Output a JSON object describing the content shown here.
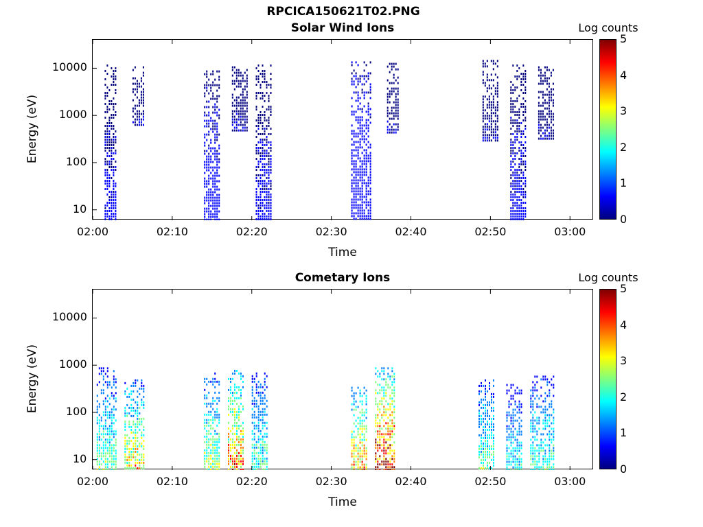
{
  "page_title": "RPCICA150621T02.PNG",
  "colormap": [
    "#00007f",
    "#0000ff",
    "#007fff",
    "#00ffff",
    "#7fff7f",
    "#ffff00",
    "#ff7f00",
    "#ff0000",
    "#7f0000"
  ],
  "chart_data": [
    {
      "type": "heatmap",
      "title": "Solar Wind Ions",
      "xlabel": "Time",
      "ylabel": "Energy (eV)",
      "x_tick_labels": [
        "02:00",
        "02:10",
        "02:20",
        "02:30",
        "02:40",
        "02:50",
        "03:00"
      ],
      "y_tick_labels": [
        "10",
        "100",
        "1000",
        "10000"
      ],
      "xlim_minutes": [
        0,
        63
      ],
      "ylim_eV": [
        6,
        40000
      ],
      "yscale": "log",
      "colorbar_label": "Log counts",
      "colorbar_ticks": [
        "0",
        "1",
        "2",
        "3",
        "4",
        "5"
      ],
      "clim": [
        0,
        5
      ],
      "bursts": [
        {
          "t_start": 1.5,
          "t_end": 3.0,
          "e_min": 6,
          "e_max": 12000,
          "level": 0.3
        },
        {
          "t_start": 5.0,
          "t_end": 6.5,
          "e_min": 600,
          "e_max": 11000,
          "level": 0.2
        },
        {
          "t_start": 14.0,
          "t_end": 16.0,
          "e_min": 6,
          "e_max": 9000,
          "level": 0.4
        },
        {
          "t_start": 17.5,
          "t_end": 19.5,
          "e_min": 500,
          "e_max": 11000,
          "level": 0.2
        },
        {
          "t_start": 20.5,
          "t_end": 22.5,
          "e_min": 6,
          "e_max": 12000,
          "level": 0.3
        },
        {
          "t_start": 32.5,
          "t_end": 35.0,
          "e_min": 6,
          "e_max": 14000,
          "level": 0.5
        },
        {
          "t_start": 37.0,
          "t_end": 38.5,
          "e_min": 400,
          "e_max": 13000,
          "level": 0.2
        },
        {
          "t_start": 49.0,
          "t_end": 51.0,
          "e_min": 300,
          "e_max": 15000,
          "level": 0.2
        },
        {
          "t_start": 52.5,
          "t_end": 54.5,
          "e_min": 6,
          "e_max": 12000,
          "level": 0.3
        },
        {
          "t_start": 56.0,
          "t_end": 58.0,
          "e_min": 300,
          "e_max": 11000,
          "level": 0.2
        }
      ]
    },
    {
      "type": "heatmap",
      "title": "Cometary Ions",
      "xlabel": "Time",
      "ylabel": "Energy (eV)",
      "x_tick_labels": [
        "02:00",
        "02:10",
        "02:20",
        "02:30",
        "02:40",
        "02:50",
        "03:00"
      ],
      "y_tick_labels": [
        "10",
        "100",
        "1000",
        "10000"
      ],
      "xlim_minutes": [
        0,
        63
      ],
      "ylim_eV": [
        6,
        40000
      ],
      "yscale": "log",
      "colorbar_label": "Log counts",
      "colorbar_ticks": [
        "0",
        "1",
        "2",
        "3",
        "4",
        "5"
      ],
      "clim": [
        0,
        5
      ],
      "bursts": [
        {
          "t_start": 0.5,
          "t_end": 3.0,
          "e_min": 6,
          "e_max": 900,
          "level": 1.6
        },
        {
          "t_start": 4.0,
          "t_end": 6.5,
          "e_min": 6,
          "e_max": 500,
          "level": 2.2
        },
        {
          "t_start": 14.0,
          "t_end": 16.0,
          "e_min": 6,
          "e_max": 700,
          "level": 1.8
        },
        {
          "t_start": 17.0,
          "t_end": 19.0,
          "e_min": 6,
          "e_max": 800,
          "level": 2.6
        },
        {
          "t_start": 20.0,
          "t_end": 22.0,
          "e_min": 6,
          "e_max": 700,
          "level": 1.5
        },
        {
          "t_start": 32.5,
          "t_end": 34.5,
          "e_min": 6,
          "e_max": 400,
          "level": 2.4
        },
        {
          "t_start": 35.5,
          "t_end": 38.0,
          "e_min": 6,
          "e_max": 900,
          "level": 3.2
        },
        {
          "t_start": 48.5,
          "t_end": 50.5,
          "e_min": 6,
          "e_max": 500,
          "level": 1.6
        },
        {
          "t_start": 52.0,
          "t_end": 54.0,
          "e_min": 6,
          "e_max": 400,
          "level": 1.3
        },
        {
          "t_start": 55.0,
          "t_end": 58.0,
          "e_min": 6,
          "e_max": 600,
          "level": 1.5
        }
      ]
    }
  ]
}
